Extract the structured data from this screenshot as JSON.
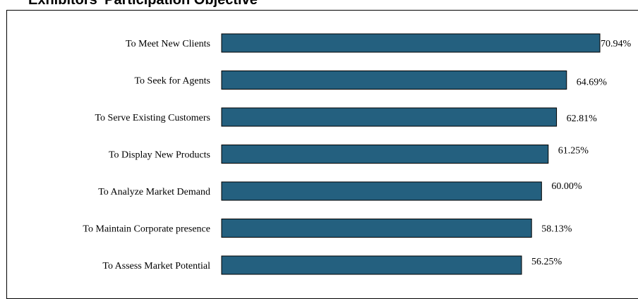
{
  "header": {
    "title": "Exhibitors' Participation Objective"
  },
  "colors": {
    "bar_fill": "#24607F",
    "bar_stroke": "#000000",
    "text": "#000000",
    "frame": "#000000"
  },
  "chart_data": {
    "type": "bar",
    "orientation": "horizontal",
    "categories": [
      "To Meet New Clients",
      "To Seek for Agents",
      "To Serve Existing Customers",
      "To Display New Products",
      "To Analyze Market Demand",
      "To Maintain Corporate presence",
      "To Assess Market Potential"
    ],
    "values": [
      70.94,
      64.69,
      62.81,
      61.25,
      60.0,
      58.13,
      56.25
    ],
    "value_labels": [
      "70.94%",
      "64.69%",
      "62.81%",
      "61.25%",
      "60.00%",
      "58.13%",
      "56.25%"
    ],
    "unit": "%",
    "xlim": [
      0,
      70.94
    ],
    "grid": false,
    "legend": "none"
  }
}
